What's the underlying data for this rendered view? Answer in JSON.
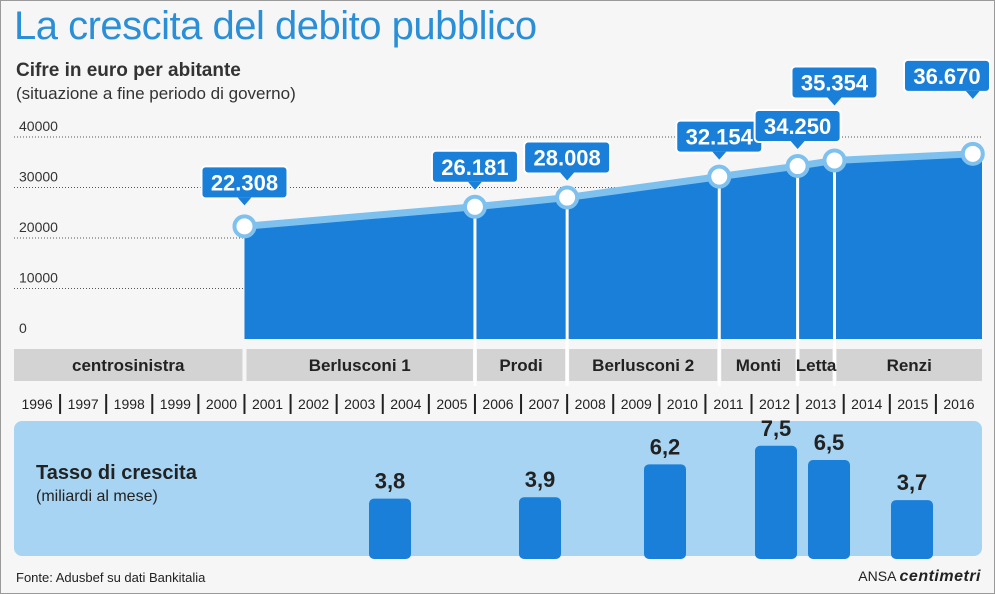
{
  "title": "La crescita del debito pubblico",
  "subtitle": "Cifre in euro per abitante",
  "note": "(situazione a fine periodo di governo)",
  "rate_title": "Tasso di crescita",
  "rate_subtitle": "(miliardi al mese)",
  "source": "Fonte: Adusbef su dati Bankitalia",
  "credit_prefix": "ANSA",
  "credit_brand": "centimetri",
  "colors": {
    "title": "#2a8fd6",
    "area": "#1a7fd8",
    "line": "#7fc1ee",
    "label_bg": "#1a7fd8",
    "band": "#d3d3d3",
    "rate_panel": "#a7d4f3"
  },
  "chart_data": [
    {
      "type": "area",
      "ylabel": "",
      "ylim": [
        0,
        40000
      ],
      "y_ticks": [
        "40000",
        "30000",
        "20000",
        "10000",
        "0"
      ],
      "grid": true,
      "years": [
        "1996",
        "1997",
        "1998",
        "1999",
        "2000",
        "2001",
        "2002",
        "2003",
        "2004",
        "2005",
        "2006",
        "2007",
        "2008",
        "2009",
        "2010",
        "2011",
        "2012",
        "2013",
        "2014",
        "2015",
        "2016"
      ],
      "points": [
        {
          "x": 2001,
          "y": 22308,
          "label": "22.308"
        },
        {
          "x": 2006,
          "y": 26181,
          "label": "26.181"
        },
        {
          "x": 2008,
          "y": 28008,
          "label": "28.008"
        },
        {
          "x": 2011.3,
          "y": 32154,
          "label": "32.154"
        },
        {
          "x": 2013,
          "y": 34250,
          "label": "34.250"
        },
        {
          "x": 2013.8,
          "y": 35354,
          "label": "35.354"
        },
        {
          "x": 2016.8,
          "y": 36670,
          "label": "36.670"
        }
      ],
      "governments": [
        {
          "name": "centrosinistra",
          "start": 1996,
          "end": 2001
        },
        {
          "name": "Berlusconi 1",
          "start": 2001,
          "end": 2006
        },
        {
          "name": "Prodi",
          "start": 2006,
          "end": 2008
        },
        {
          "name": "Berlusconi 2",
          "start": 2008,
          "end": 2011.3
        },
        {
          "name": "Monti",
          "start": 2011.3,
          "end": 2013
        },
        {
          "name": "Letta",
          "start": 2013,
          "end": 2013.8
        },
        {
          "name": "Renzi",
          "start": 2013.8,
          "end": 2016.8
        }
      ]
    },
    {
      "type": "bar",
      "title": "Tasso di crescita",
      "unit": "miliardi al mese",
      "categories": [
        "Berlusconi 1",
        "Prodi",
        "Berlusconi 2",
        "Monti",
        "Letta",
        "Renzi"
      ],
      "values": [
        3.8,
        3.9,
        6.2,
        7.5,
        6.5,
        3.7
      ],
      "labels": [
        "3,8",
        "3,9",
        "6,2",
        "7,5",
        "6,5",
        "3,7"
      ]
    }
  ]
}
